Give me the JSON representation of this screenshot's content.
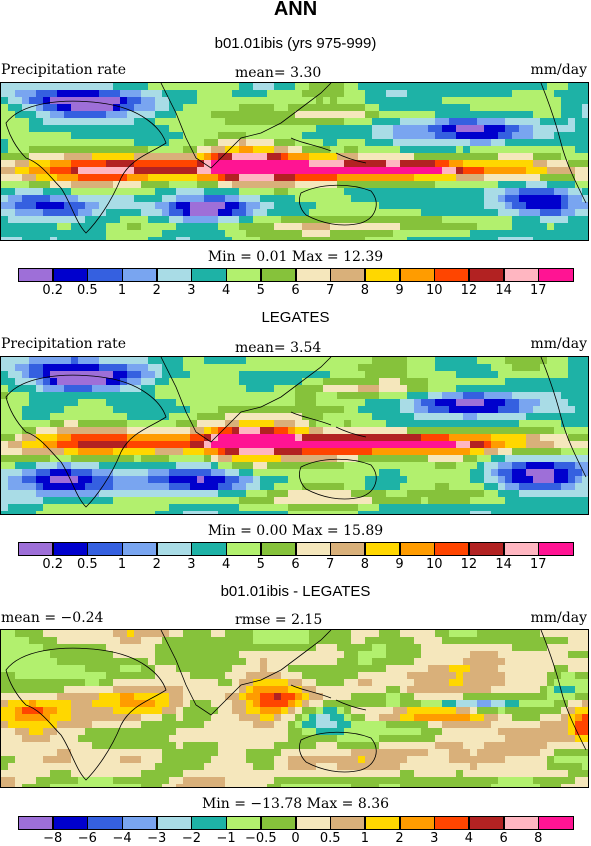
{
  "figure": {
    "title": "ANN",
    "units": "mm/day"
  },
  "panels": [
    {
      "subtitle": "b01.01ibis (yrs 975-999)",
      "left_label": "Precipitation rate",
      "center_label": "mean=   3.30",
      "right_label": "mm/day",
      "stats": "Min =   0.01  Max =  12.39"
    },
    {
      "subtitle": "LEGATES",
      "left_label": "Precipitation rate",
      "center_label": "mean=   3.54",
      "right_label": "mm/day",
      "stats": "Min =   0.00  Max =  15.89"
    },
    {
      "subtitle": "b01.01ibis - LEGATES",
      "left_label": "mean =  −0.24",
      "center_label": "rmse =    2.15",
      "right_label": "mm/day",
      "stats": "Min = −13.78  Max =    8.36"
    }
  ],
  "chart_data": [
    {
      "type": "heatmap",
      "title": "ANN",
      "subtitle": "b01.01ibis (yrs 975-999)",
      "variable": "Precipitation rate",
      "units": "mm/day",
      "mean": 3.3,
      "min": 0.01,
      "max": 12.39,
      "colorbar_levels": [
        "0.2",
        "0.5",
        "1",
        "2",
        "3",
        "4",
        "5",
        "6",
        "7",
        "8",
        "9",
        "10",
        "12",
        "14",
        "17"
      ],
      "colorbar_colors": [
        "#9e6fd8",
        "#0000cd",
        "#3560e0",
        "#79a5f0",
        "#a9dce6",
        "#1eb2a6",
        "#b2f06e",
        "#86c23b",
        "#f5e7bc",
        "#d9b07a",
        "#ffd700",
        "#ff9c00",
        "#ff4500",
        "#b22222",
        "#ffb6c1",
        "#ff1493"
      ]
    },
    {
      "type": "heatmap",
      "subtitle": "LEGATES",
      "variable": "Precipitation rate",
      "units": "mm/day",
      "mean": 3.54,
      "min": 0.0,
      "max": 15.89,
      "colorbar_levels": [
        "0.2",
        "0.5",
        "1",
        "2",
        "3",
        "4",
        "5",
        "6",
        "7",
        "8",
        "9",
        "10",
        "12",
        "14",
        "17"
      ],
      "colorbar_colors": [
        "#9e6fd8",
        "#0000cd",
        "#3560e0",
        "#79a5f0",
        "#a9dce6",
        "#1eb2a6",
        "#b2f06e",
        "#86c23b",
        "#f5e7bc",
        "#d9b07a",
        "#ffd700",
        "#ff9c00",
        "#ff4500",
        "#b22222",
        "#ffb6c1",
        "#ff1493"
      ]
    },
    {
      "type": "heatmap",
      "subtitle": "b01.01ibis - LEGATES",
      "units": "mm/day",
      "mean": -0.24,
      "rmse": 2.15,
      "min": -13.78,
      "max": 8.36,
      "colorbar_levels": [
        "−8",
        "−6",
        "−4",
        "−3",
        "−2",
        "−1",
        "−0.5",
        "0",
        "0.5",
        "1",
        "2",
        "3",
        "4",
        "6",
        "8"
      ],
      "colorbar_colors": [
        "#9e6fd8",
        "#0000cd",
        "#3560e0",
        "#79a5f0",
        "#a9dce6",
        "#1eb2a6",
        "#b2f06e",
        "#86c23b",
        "#f5e7bc",
        "#d9b07a",
        "#ffd700",
        "#ff9c00",
        "#ff4500",
        "#b22222",
        "#ffb6c1",
        "#ff1493"
      ]
    }
  ]
}
